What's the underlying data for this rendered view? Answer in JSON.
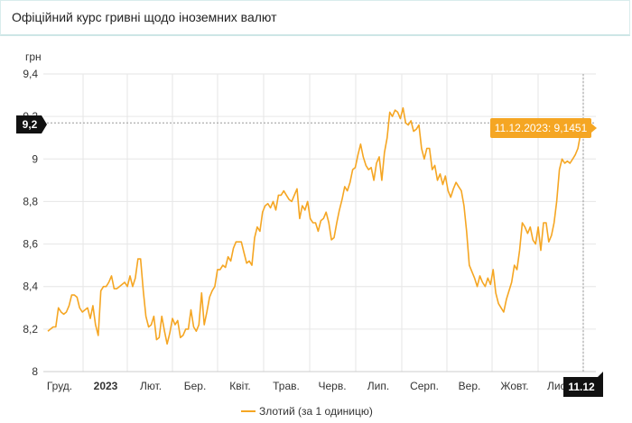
{
  "header": {
    "title": "Офіційний курс гривні щодо іноземних валют"
  },
  "chart_data": {
    "type": "line",
    "title": "",
    "ylabel": "грн",
    "xlabel": "",
    "ylim": [
      8,
      9.4
    ],
    "yticks": [
      "8",
      "8,2",
      "8,4",
      "8,6",
      "8,8",
      "9",
      "9,2",
      "9,4"
    ],
    "xticks": [
      {
        "label": "Груд.",
        "bold": false
      },
      {
        "label": "2023",
        "bold": true
      },
      {
        "label": "Лют.",
        "bold": false
      },
      {
        "label": "Бер.",
        "bold": false
      },
      {
        "label": "Квіт.",
        "bold": false
      },
      {
        "label": "Трав.",
        "bold": false
      },
      {
        "label": "Черв.",
        "bold": false
      },
      {
        "label": "Лип.",
        "bold": false
      },
      {
        "label": "Серп.",
        "bold": false
      },
      {
        "label": "Вер.",
        "bold": false
      },
      {
        "label": "Жовт.",
        "bold": false
      },
      {
        "label": "Лист.",
        "bold": false
      }
    ],
    "grid": true,
    "series": [
      {
        "name": "Злотий (за 1 одиницю)",
        "color": "#f5a623",
        "values": [
          8.19,
          8.2,
          8.21,
          8.21,
          8.3,
          8.28,
          8.27,
          8.28,
          8.31,
          8.36,
          8.36,
          8.35,
          8.3,
          8.28,
          8.29,
          8.3,
          8.25,
          8.31,
          8.22,
          8.17,
          8.38,
          8.4,
          8.4,
          8.42,
          8.45,
          8.39,
          8.39,
          8.4,
          8.41,
          8.42,
          8.4,
          8.45,
          8.4,
          8.44,
          8.53,
          8.53,
          8.38,
          8.26,
          8.21,
          8.22,
          8.26,
          8.15,
          8.16,
          8.26,
          8.19,
          8.13,
          8.18,
          8.25,
          8.22,
          8.24,
          8.16,
          8.17,
          8.2,
          8.2,
          8.29,
          8.21,
          8.19,
          8.22,
          8.37,
          8.22,
          8.28,
          8.35,
          8.38,
          8.4,
          8.48,
          8.48,
          8.5,
          8.49,
          8.54,
          8.52,
          8.58,
          8.61,
          8.61,
          8.61,
          8.56,
          8.51,
          8.52,
          8.5,
          8.63,
          8.68,
          8.66,
          8.75,
          8.78,
          8.79,
          8.77,
          8.8,
          8.76,
          8.83,
          8.83,
          8.85,
          8.83,
          8.81,
          8.8,
          8.83,
          8.86,
          8.72,
          8.78,
          8.76,
          8.8,
          8.72,
          8.7,
          8.7,
          8.66,
          8.71,
          8.72,
          8.75,
          8.7,
          8.62,
          8.63,
          8.7,
          8.76,
          8.81,
          8.87,
          8.85,
          8.89,
          8.95,
          8.96,
          9.02,
          9.07,
          9.01,
          8.97,
          8.95,
          8.96,
          8.9,
          8.98,
          9.01,
          8.9,
          9.03,
          9.1,
          9.22,
          9.2,
          9.23,
          9.22,
          9.19,
          9.24,
          9.17,
          9.16,
          9.18,
          9.13,
          9.14,
          9.16,
          9.05,
          9.0,
          9.05,
          9.05,
          8.95,
          8.97,
          8.9,
          8.93,
          8.88,
          8.92,
          8.85,
          8.82,
          8.86,
          8.89,
          8.87,
          8.85,
          8.78,
          8.66,
          8.5,
          8.47,
          8.44,
          8.4,
          8.45,
          8.42,
          8.4,
          8.44,
          8.41,
          8.48,
          8.37,
          8.32,
          8.3,
          8.28,
          8.34,
          8.38,
          8.42,
          8.5,
          8.48,
          8.57,
          8.7,
          8.68,
          8.65,
          8.68,
          8.62,
          8.6,
          8.68,
          8.57,
          8.7,
          8.7,
          8.61,
          8.64,
          8.7,
          8.8,
          8.95,
          9.0,
          8.98,
          8.99,
          8.98,
          9.0,
          9.02,
          9.05,
          9.12,
          9.15
        ]
      }
    ],
    "tooltip": {
      "label": "11.12.2023: 9,1451"
    },
    "crosshair": {
      "y_label": "9,2",
      "x_label": "11.12"
    }
  }
}
